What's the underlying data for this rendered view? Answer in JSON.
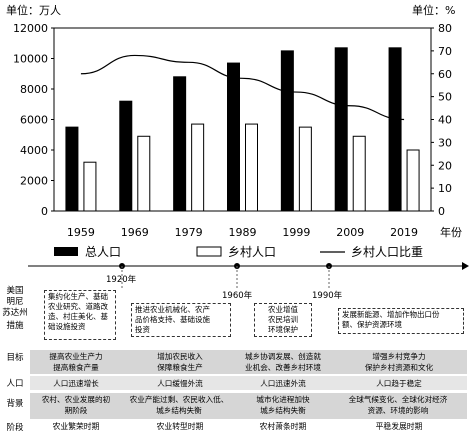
{
  "chart_data": {
    "type": "bar+line",
    "left_axis_label": "单位：万人",
    "right_axis_label": "单位：%",
    "x_axis_unit": "年份",
    "categories": [
      "1959",
      "1969",
      "1979",
      "1989",
      "1999",
      "2009",
      "2019"
    ],
    "left_ylim": [
      0,
      12000
    ],
    "left_ticks": [
      "0",
      "2000",
      "4000",
      "6000",
      "8000",
      "10000",
      "12000"
    ],
    "right_ylim": [
      0,
      80
    ],
    "right_ticks": [
      "0",
      "10",
      "20",
      "30",
      "40",
      "50",
      "60",
      "70",
      "80"
    ],
    "series": [
      {
        "name": "总人口",
        "kind": "bar",
        "fill": "#000000",
        "axis": "left",
        "values": [
          5500,
          7200,
          8800,
          9700,
          10500,
          10700,
          10700
        ]
      },
      {
        "name": "乡村人口",
        "kind": "bar",
        "fill": "#ffffff",
        "axis": "left",
        "values": [
          3200,
          4900,
          5700,
          5700,
          5500,
          4900,
          4000
        ]
      },
      {
        "name": "乡村人口比重",
        "kind": "line",
        "axis": "right",
        "values": [
          60,
          68,
          65,
          58,
          52,
          46,
          40
        ]
      }
    ]
  },
  "timeline": {
    "year_marks": [
      "1920年",
      "1960年",
      "1990年"
    ],
    "row_labels": {
      "region": [
        "美国",
        "明尼",
        "苏达州"
      ],
      "measures": [
        "措施"
      ],
      "goals": [
        "目标"
      ],
      "population": [
        "人口"
      ],
      "background": [
        "背景"
      ],
      "stage": [
        "阶段"
      ]
    },
    "measures": [
      [
        "集约化生产、基础",
        "农业研究、道路改",
        "造、村庄美化、基",
        "础设施投资"
      ],
      [
        "推进农业机械化、农产",
        "品价格支持、基础设施",
        "投资"
      ],
      [
        "农业增值",
        "农民培训",
        "环境保护"
      ],
      [
        "发展新能源、增加作物出口份",
        "额、保护资源环境"
      ]
    ],
    "goals": [
      [
        "提高农业生产力",
        "提高粮食产量"
      ],
      [
        "增加农民收入",
        "保障粮食生产"
      ],
      [
        "城乡协调发展、创造就",
        "业机会、改善乡村环境"
      ],
      [
        "增强乡村竞争力",
        "保护乡村资源和文化"
      ]
    ],
    "population": [
      [
        "人口迅速增长"
      ],
      [
        "人口缓慢外流"
      ],
      [
        "人口迅速外流"
      ],
      [
        "人口趋于稳定"
      ]
    ],
    "background": [
      [
        "农村、农业发展的初",
        "期阶段"
      ],
      [
        "农业产能过剩、农民收入低、",
        "城乡结构失衡"
      ],
      [
        "城市化进程加快",
        "城乡结构失衡"
      ],
      [
        "全球气候变化、全球化对经济",
        "资源、环境的影响"
      ]
    ],
    "stages": [
      "农业繁荣时期",
      "农业转型时期",
      "农村萧条时期",
      "平稳发展时期"
    ]
  }
}
